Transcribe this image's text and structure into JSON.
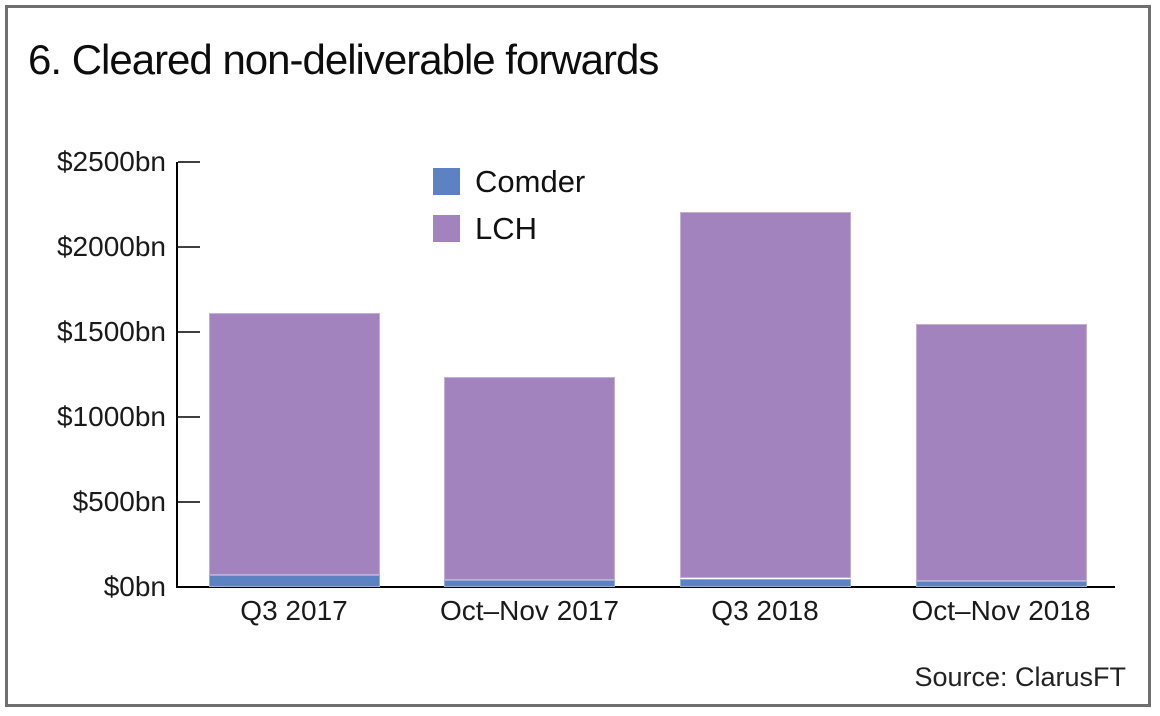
{
  "figure": {
    "title": "6. Cleared non-deliverable forwards",
    "source": "Source: ClarusFT"
  },
  "chart_data": {
    "type": "bar",
    "stacked": true,
    "title": "6. Cleared non-deliverable forwards",
    "categories": [
      "Q3 2017",
      "Oct–Nov 2017",
      "Q3 2018",
      "Oct–Nov 2018"
    ],
    "series": [
      {
        "name": "Comder",
        "color": "#5c82c1",
        "values": [
          70,
          40,
          50,
          35
        ]
      },
      {
        "name": "LCH",
        "color": "#a383bd",
        "values": [
          1540,
          1195,
          2155,
          1515
        ]
      }
    ],
    "totals": [
      1610,
      1235,
      2205,
      1550
    ],
    "unit": "$bn",
    "ylim": [
      0,
      2500
    ],
    "y_ticks": [
      0,
      500,
      1000,
      1500,
      2000,
      2500
    ],
    "y_tick_labels": [
      "$0bn",
      "$500bn",
      "$1000bn",
      "$1500bn",
      "$2000bn",
      "$2500bn"
    ],
    "grid": false,
    "legend_position": "upper-left-inside",
    "source": "Source: ClarusFT"
  }
}
